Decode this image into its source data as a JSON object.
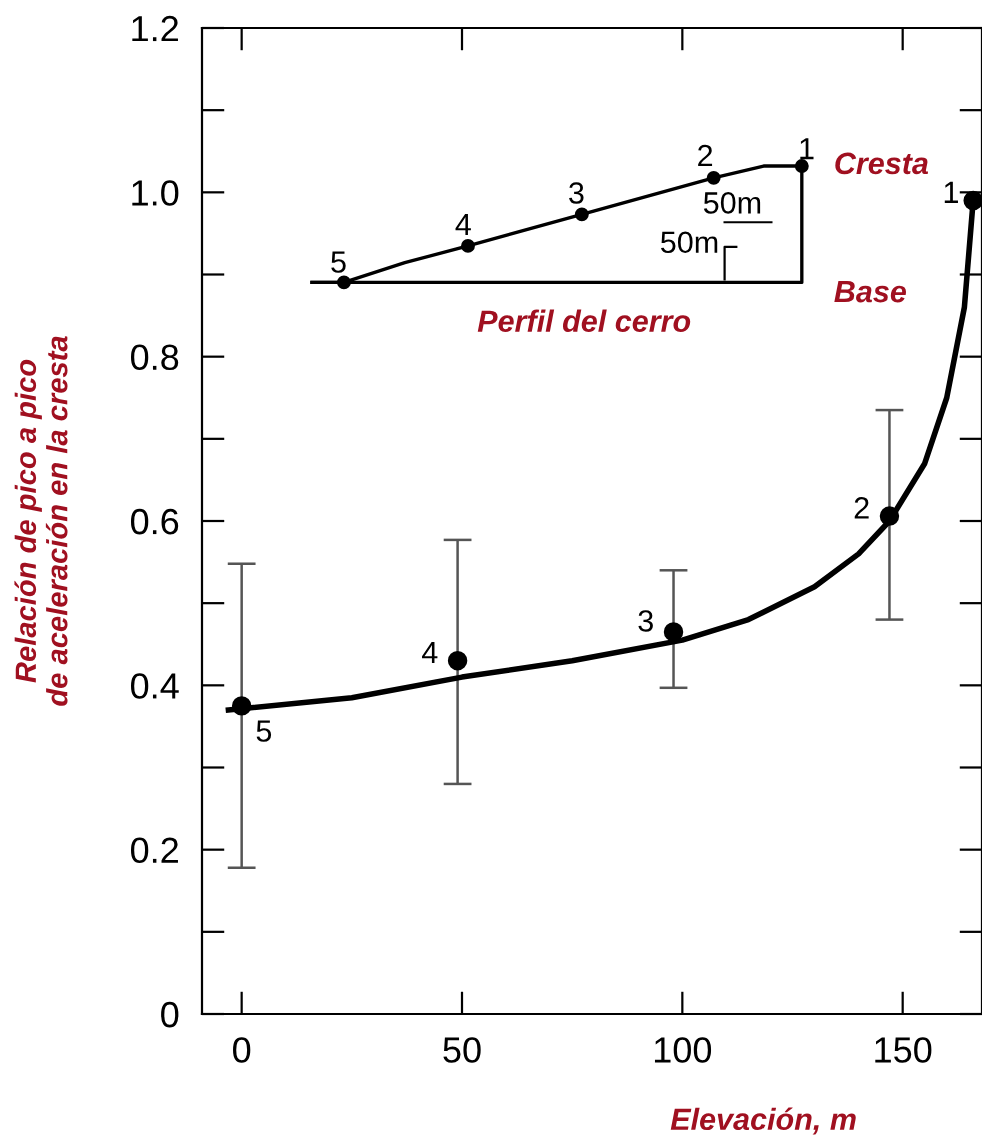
{
  "chart_data": {
    "type": "scatter",
    "xlabel": "Elevación, m",
    "ylabel": "Relación de pico a pico\nde aceleración en la cresta",
    "xlim": [
      -9,
      168
    ],
    "xticks": [
      0,
      50,
      100,
      150
    ],
    "ylim": [
      0,
      1.2
    ],
    "yticks": [
      0,
      {
        "value": 0.1,
        "label": null
      },
      0.2,
      {
        "value": 0.3,
        "label": null
      },
      0.4,
      {
        "value": 0.5,
        "label": null
      },
      0.6,
      {
        "value": 0.7,
        "label": null
      },
      0.8,
      {
        "value": 0.9,
        "label": null
      },
      "1.0",
      {
        "value": 1.1,
        "label": null
      },
      1.2
    ],
    "series": [
      {
        "color": "#000000",
        "marker": "circle",
        "x": [
          0,
          49,
          98,
          147,
          166
        ],
        "values": [
          0.375,
          0.43,
          0.465,
          0.606,
          0.99
        ],
        "errors": [
          [
            0.178,
            0.548
          ],
          [
            0.28,
            0.577
          ],
          [
            0.397,
            0.54
          ],
          [
            0.48,
            0.735
          ],
          null
        ]
      },
      {
        "type": "line",
        "color": "#000000",
        "x": [
          -3,
          25,
          50,
          75,
          100,
          115,
          130,
          140,
          147,
          155,
          160,
          164,
          166
        ],
        "values": [
          0.37,
          0.385,
          0.41,
          0.43,
          0.455,
          0.48,
          0.52,
          0.56,
          0.6,
          0.67,
          0.75,
          0.86,
          0.99
        ]
      }
    ],
    "annotations": [
      {
        "text": "1",
        "x": 166,
        "y": 0.99
      },
      {
        "text": "2",
        "x": 147,
        "y": 0.606
      },
      {
        "text": "3",
        "x": 98,
        "y": 0.465
      },
      {
        "text": "4",
        "x": 49,
        "y": 0.43
      },
      {
        "text": "5",
        "x": 0,
        "y": 0.375
      },
      "1",
      "2",
      "3",
      "4",
      "5",
      "Cresta",
      "50m",
      "50m",
      "Base",
      "Perfil del cerro"
    ]
  }
}
